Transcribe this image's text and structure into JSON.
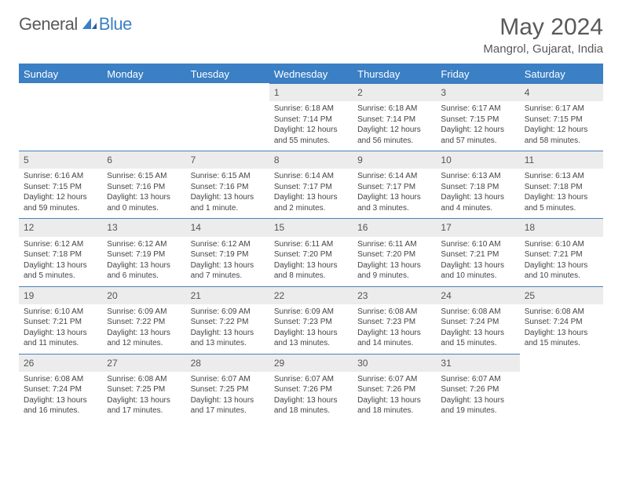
{
  "logo": {
    "part1": "General",
    "part2": "Blue"
  },
  "title": "May 2024",
  "location": "Mangrol, Gujarat, India",
  "colors": {
    "header_bg": "#3b7fc4",
    "daynum_bg": "#ececec",
    "day_border": "#4a80b8",
    "text": "#444444"
  },
  "dow": [
    "Sunday",
    "Monday",
    "Tuesday",
    "Wednesday",
    "Thursday",
    "Friday",
    "Saturday"
  ],
  "labels": {
    "sunrise": "Sunrise:",
    "sunset": "Sunset:",
    "daylight": "Daylight:"
  },
  "weeks": [
    [
      null,
      null,
      null,
      {
        "n": "1",
        "sr": "6:18 AM",
        "ss": "7:14 PM",
        "dl": "12 hours and 55 minutes."
      },
      {
        "n": "2",
        "sr": "6:18 AM",
        "ss": "7:14 PM",
        "dl": "12 hours and 56 minutes."
      },
      {
        "n": "3",
        "sr": "6:17 AM",
        "ss": "7:15 PM",
        "dl": "12 hours and 57 minutes."
      },
      {
        "n": "4",
        "sr": "6:17 AM",
        "ss": "7:15 PM",
        "dl": "12 hours and 58 minutes."
      }
    ],
    [
      {
        "n": "5",
        "sr": "6:16 AM",
        "ss": "7:15 PM",
        "dl": "12 hours and 59 minutes."
      },
      {
        "n": "6",
        "sr": "6:15 AM",
        "ss": "7:16 PM",
        "dl": "13 hours and 0 minutes."
      },
      {
        "n": "7",
        "sr": "6:15 AM",
        "ss": "7:16 PM",
        "dl": "13 hours and 1 minute."
      },
      {
        "n": "8",
        "sr": "6:14 AM",
        "ss": "7:17 PM",
        "dl": "13 hours and 2 minutes."
      },
      {
        "n": "9",
        "sr": "6:14 AM",
        "ss": "7:17 PM",
        "dl": "13 hours and 3 minutes."
      },
      {
        "n": "10",
        "sr": "6:13 AM",
        "ss": "7:18 PM",
        "dl": "13 hours and 4 minutes."
      },
      {
        "n": "11",
        "sr": "6:13 AM",
        "ss": "7:18 PM",
        "dl": "13 hours and 5 minutes."
      }
    ],
    [
      {
        "n": "12",
        "sr": "6:12 AM",
        "ss": "7:18 PM",
        "dl": "13 hours and 5 minutes."
      },
      {
        "n": "13",
        "sr": "6:12 AM",
        "ss": "7:19 PM",
        "dl": "13 hours and 6 minutes."
      },
      {
        "n": "14",
        "sr": "6:12 AM",
        "ss": "7:19 PM",
        "dl": "13 hours and 7 minutes."
      },
      {
        "n": "15",
        "sr": "6:11 AM",
        "ss": "7:20 PM",
        "dl": "13 hours and 8 minutes."
      },
      {
        "n": "16",
        "sr": "6:11 AM",
        "ss": "7:20 PM",
        "dl": "13 hours and 9 minutes."
      },
      {
        "n": "17",
        "sr": "6:10 AM",
        "ss": "7:21 PM",
        "dl": "13 hours and 10 minutes."
      },
      {
        "n": "18",
        "sr": "6:10 AM",
        "ss": "7:21 PM",
        "dl": "13 hours and 10 minutes."
      }
    ],
    [
      {
        "n": "19",
        "sr": "6:10 AM",
        "ss": "7:21 PM",
        "dl": "13 hours and 11 minutes."
      },
      {
        "n": "20",
        "sr": "6:09 AM",
        "ss": "7:22 PM",
        "dl": "13 hours and 12 minutes."
      },
      {
        "n": "21",
        "sr": "6:09 AM",
        "ss": "7:22 PM",
        "dl": "13 hours and 13 minutes."
      },
      {
        "n": "22",
        "sr": "6:09 AM",
        "ss": "7:23 PM",
        "dl": "13 hours and 13 minutes."
      },
      {
        "n": "23",
        "sr": "6:08 AM",
        "ss": "7:23 PM",
        "dl": "13 hours and 14 minutes."
      },
      {
        "n": "24",
        "sr": "6:08 AM",
        "ss": "7:24 PM",
        "dl": "13 hours and 15 minutes."
      },
      {
        "n": "25",
        "sr": "6:08 AM",
        "ss": "7:24 PM",
        "dl": "13 hours and 15 minutes."
      }
    ],
    [
      {
        "n": "26",
        "sr": "6:08 AM",
        "ss": "7:24 PM",
        "dl": "13 hours and 16 minutes."
      },
      {
        "n": "27",
        "sr": "6:08 AM",
        "ss": "7:25 PM",
        "dl": "13 hours and 17 minutes."
      },
      {
        "n": "28",
        "sr": "6:07 AM",
        "ss": "7:25 PM",
        "dl": "13 hours and 17 minutes."
      },
      {
        "n": "29",
        "sr": "6:07 AM",
        "ss": "7:26 PM",
        "dl": "13 hours and 18 minutes."
      },
      {
        "n": "30",
        "sr": "6:07 AM",
        "ss": "7:26 PM",
        "dl": "13 hours and 18 minutes."
      },
      {
        "n": "31",
        "sr": "6:07 AM",
        "ss": "7:26 PM",
        "dl": "13 hours and 19 minutes."
      },
      null
    ]
  ]
}
